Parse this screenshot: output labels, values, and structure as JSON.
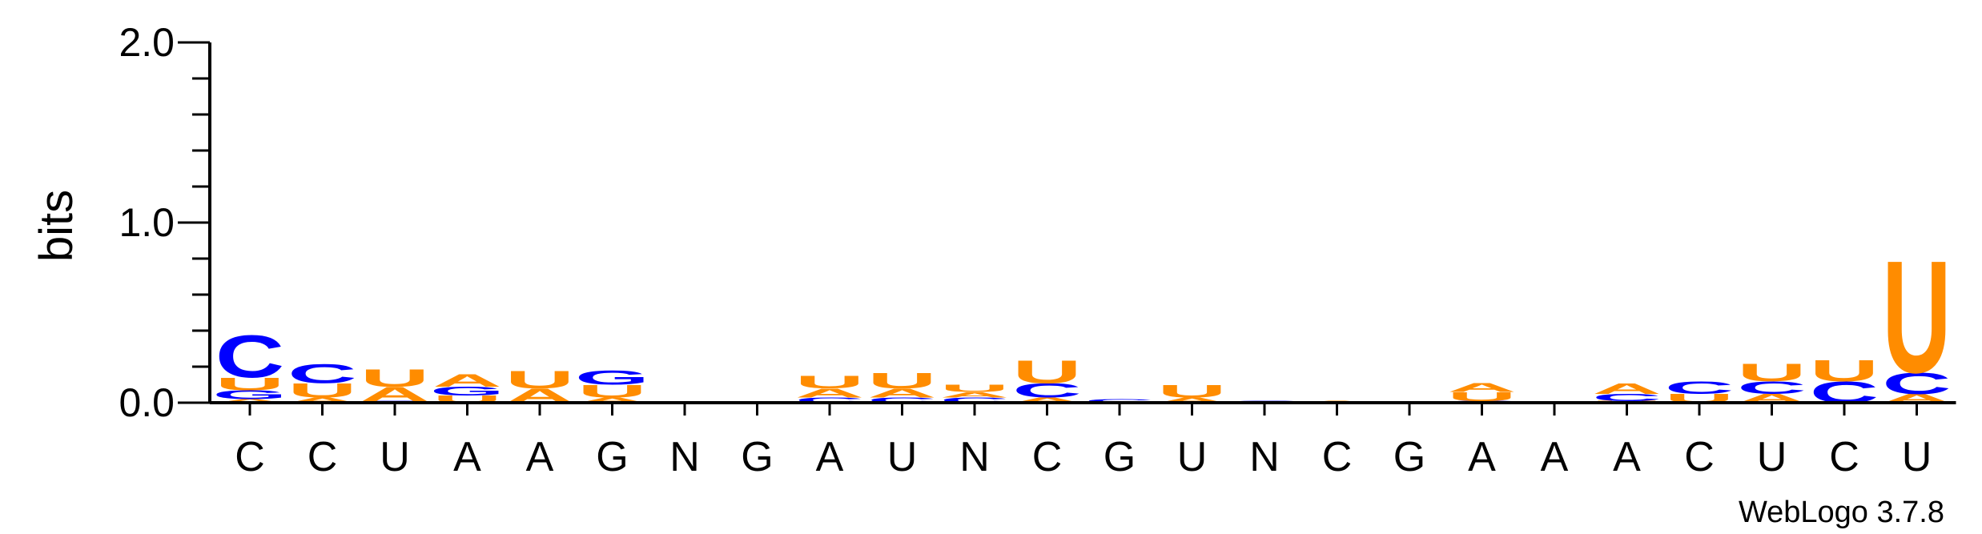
{
  "chart_data": {
    "type": "sequence-logo",
    "ylabel": "bits",
    "ylim": [
      0,
      2.0
    ],
    "yticks": [
      "0.0",
      "1.0",
      "2.0"
    ],
    "positions": [
      "C",
      "C",
      "U",
      "A",
      "A",
      "G",
      "N",
      "G",
      "A",
      "U",
      "N",
      "C",
      "G",
      "U",
      "N",
      "C",
      "G",
      "A",
      "A",
      "A",
      "C",
      "U",
      "C",
      "U"
    ],
    "stacks": [
      [
        {
          "l": "A",
          "h": 0.02
        },
        {
          "l": "G",
          "h": 0.05
        },
        {
          "l": "U",
          "h": 0.07
        },
        {
          "l": "C",
          "h": 0.24
        }
      ],
      [
        {
          "l": "A",
          "h": 0.03
        },
        {
          "l": "U",
          "h": 0.08
        },
        {
          "l": "C",
          "h": 0.11
        }
      ],
      [
        {
          "l": "G",
          "h": 0.01
        },
        {
          "l": "A",
          "h": 0.08
        },
        {
          "l": "U",
          "h": 0.1
        }
      ],
      [
        {
          "l": "U",
          "h": 0.04
        },
        {
          "l": "G",
          "h": 0.05
        },
        {
          "l": "A",
          "h": 0.07
        }
      ],
      [
        {
          "l": "A",
          "h": 0.08
        },
        {
          "l": "U",
          "h": 0.1
        }
      ],
      [
        {
          "l": "A",
          "h": 0.03
        },
        {
          "l": "U",
          "h": 0.07
        },
        {
          "l": "G",
          "h": 0.08
        }
      ],
      [],
      [],
      [
        {
          "l": "C",
          "h": 0.03
        },
        {
          "l": "A",
          "h": 0.05
        },
        {
          "l": "U",
          "h": 0.07
        }
      ],
      [
        {
          "l": "C",
          "h": 0.03
        },
        {
          "l": "A",
          "h": 0.05
        },
        {
          "l": "U",
          "h": 0.09
        }
      ],
      [
        {
          "l": "C",
          "h": 0.03
        },
        {
          "l": "A",
          "h": 0.03
        },
        {
          "l": "U",
          "h": 0.04
        }
      ],
      [
        {
          "l": "A",
          "h": 0.03
        },
        {
          "l": "C",
          "h": 0.08
        },
        {
          "l": "U",
          "h": 0.13
        }
      ],
      [
        {
          "l": "C",
          "h": 0.02
        }
      ],
      [
        {
          "l": "A",
          "h": 0.03
        },
        {
          "l": "U",
          "h": 0.07
        }
      ],
      [
        {
          "l": "C",
          "h": 0.01
        }
      ],
      [
        {
          "l": "A",
          "h": 0.01
        }
      ],
      [],
      [
        {
          "l": "C",
          "h": 0.01
        },
        {
          "l": "U",
          "h": 0.05
        },
        {
          "l": "A",
          "h": 0.05
        }
      ],
      [],
      [
        {
          "l": "U",
          "h": 0.01
        },
        {
          "l": "C",
          "h": 0.04
        },
        {
          "l": "A",
          "h": 0.06
        }
      ],
      [
        {
          "l": "U",
          "h": 0.05
        },
        {
          "l": "C",
          "h": 0.07
        }
      ],
      [
        {
          "l": "A",
          "h": 0.05
        },
        {
          "l": "C",
          "h": 0.07
        },
        {
          "l": "U",
          "h": 0.1
        }
      ],
      [
        {
          "l": "C",
          "h": 0.12
        },
        {
          "l": "U",
          "h": 0.12
        }
      ],
      [
        {
          "l": "A",
          "h": 0.05
        },
        {
          "l": "C",
          "h": 0.12
        },
        {
          "l": "U",
          "h": 0.64
        }
      ]
    ]
  },
  "colors": {
    "A": "#ff8c00",
    "U": "#ff8c00",
    "C": "#0000ff",
    "G": "#0000ff",
    "N": "#000000",
    "axis": "#000000"
  },
  "credit": "WebLogo 3.7.8"
}
